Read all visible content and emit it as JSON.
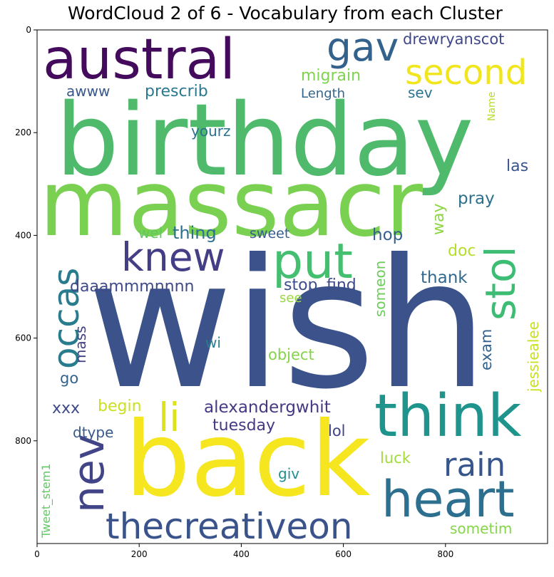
{
  "chart_data": {
    "type": "wordcloud",
    "title": "WordCloud 2 of 6 - Vocabulary from each Cluster",
    "xlim": [
      0,
      1000
    ],
    "ylim": [
      1000,
      0
    ],
    "xticks": [
      0,
      200,
      400,
      600,
      800
    ],
    "yticks": [
      0,
      200,
      400,
      600,
      800
    ],
    "grid": false,
    "words": [
      {
        "text": "wish",
        "color": "#3b528b"
      },
      {
        "text": "birthday",
        "color": "#4fba6b"
      },
      {
        "text": "massacr",
        "color": "#7ad151"
      },
      {
        "text": "back",
        "color": "#f5e61f"
      },
      {
        "text": "austral",
        "color": "#440b5c"
      },
      {
        "text": "think",
        "color": "#1f948c"
      },
      {
        "text": "heart",
        "color": "#2d6f8e"
      },
      {
        "text": "thecreativeon",
        "color": "#3a538b"
      },
      {
        "text": "knew",
        "color": "#433e85"
      },
      {
        "text": "put",
        "color": "#44bf70"
      },
      {
        "text": "gav",
        "color": "#33638d"
      },
      {
        "text": "second",
        "color": "#f1e51d"
      },
      {
        "text": "rain",
        "color": "#39568c"
      },
      {
        "text": "stol",
        "color": "#3dbc74"
      },
      {
        "text": "nev",
        "color": "#414487"
      },
      {
        "text": "occas",
        "color": "#287c8e"
      },
      {
        "text": "li",
        "color": "#dde318"
      },
      {
        "text": "alexandergwhit",
        "color": "#443983"
      },
      {
        "text": "daaammmnnnn",
        "color": "#3e4a89"
      },
      {
        "text": "stop",
        "color": "#3c4f8a"
      },
      {
        "text": "find",
        "color": "#3e4c8a"
      },
      {
        "text": "thank",
        "color": "#31688e"
      },
      {
        "text": "migrain",
        "color": "#7fd34e"
      },
      {
        "text": "drewryanscot",
        "color": "#3f4889"
      },
      {
        "text": "prescrib",
        "color": "#2a788e"
      },
      {
        "text": "awww",
        "color": "#38588c"
      },
      {
        "text": "Length",
        "color": "#32658e"
      },
      {
        "text": "sev",
        "color": "#2b758e"
      },
      {
        "text": "yourz",
        "color": "#2c718e"
      },
      {
        "text": "las",
        "color": "#3a548c"
      },
      {
        "text": "pray",
        "color": "#2d708e"
      },
      {
        "text": "way",
        "color": "#8ed645"
      },
      {
        "text": "wel",
        "color": "#5ec962"
      },
      {
        "text": "thing",
        "color": "#2d708e"
      },
      {
        "text": "sweet",
        "color": "#365c8d"
      },
      {
        "text": "hop",
        "color": "#35608d"
      },
      {
        "text": "doc",
        "color": "#b5de2b"
      },
      {
        "text": "someon",
        "color": "#6ccd5a"
      },
      {
        "text": "see",
        "color": "#98d83e"
      },
      {
        "text": "mass",
        "color": "#424086"
      },
      {
        "text": "wi",
        "color": "#287d8e"
      },
      {
        "text": "object",
        "color": "#84d44b"
      },
      {
        "text": "exam",
        "color": "#33628d"
      },
      {
        "text": "jessiealee",
        "color": "#c8e020"
      },
      {
        "text": "go",
        "color": "#33628d"
      },
      {
        "text": "xxx",
        "color": "#3e4a89"
      },
      {
        "text": "begin",
        "color": "#cae11f"
      },
      {
        "text": "tuesday",
        "color": "#443a83"
      },
      {
        "text": "lol",
        "color": "#414487"
      },
      {
        "text": "dtype",
        "color": "#38598c"
      },
      {
        "text": "luck",
        "color": "#a2da37"
      },
      {
        "text": "giv",
        "color": "#21918c"
      },
      {
        "text": "Name",
        "color": "#b8de29"
      },
      {
        "text": "sometim",
        "color": "#86d549"
      },
      {
        "text": "Tweet_stem1",
        "color": "#5ec962"
      }
    ]
  }
}
